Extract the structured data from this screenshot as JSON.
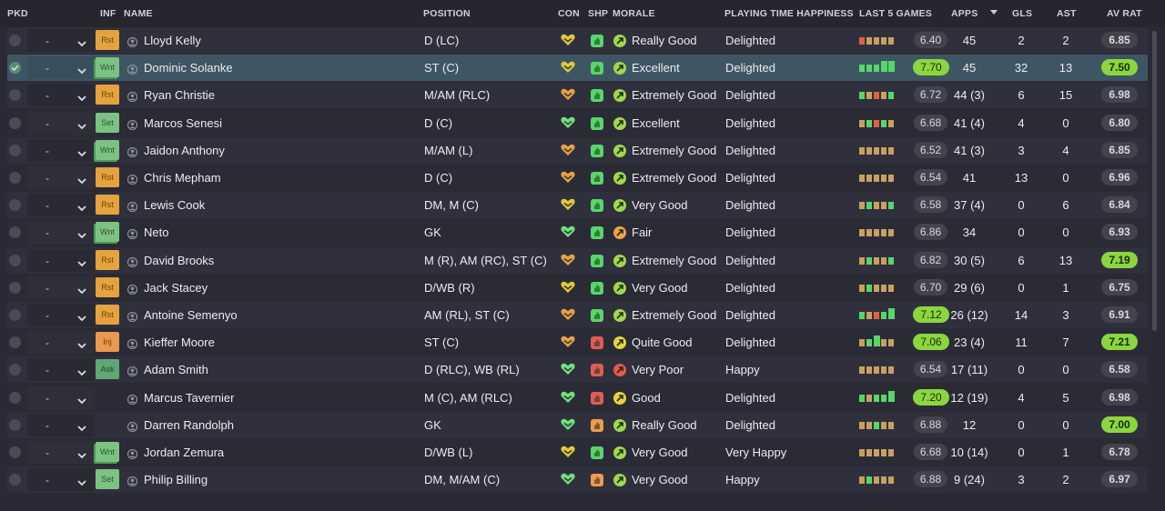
{
  "headers": {
    "pkd": "PKD",
    "inf": "INF",
    "name": "NAME",
    "position": "POSITION",
    "con": "CON",
    "shp": "SHP",
    "morale": "MORALE",
    "pth": "PLAYING TIME HAPPINESS",
    "last5": "LAST 5 GAMES",
    "apps": "APPS",
    "gls": "GLS",
    "ast": "AST",
    "avrat": "AV RAT"
  },
  "colors": {
    "good_rating": "#8bd63f",
    "form_green": "#57d66a",
    "form_tan": "#c8a060",
    "form_red": "#e0604a",
    "selected_row": "#3e5663"
  },
  "players": [
    {
      "picked": false,
      "selected": false,
      "sel": "-",
      "inf": "Rst",
      "name": "Lloyd Kelly",
      "pos": "D (LC)",
      "con": "yellow",
      "shp": "g",
      "mor_icon": "g",
      "morale": "Really Good",
      "pth": "Delighted",
      "form": [
        "r",
        "t",
        "t",
        "t",
        "t"
      ],
      "form_val": "6.40",
      "form_good": false,
      "apps": "45",
      "gls": "2",
      "ast": "2",
      "avr": "6.85",
      "avr_good": false
    },
    {
      "picked": true,
      "selected": true,
      "sel": "-",
      "inf": "Wnt",
      "name": "Dominic Solanke",
      "pos": "ST (C)",
      "con": "yellow",
      "shp": "g",
      "mor_icon": "g",
      "morale": "Excellent",
      "pth": "Delighted",
      "form": [
        "g",
        "g",
        "g",
        "G",
        "G"
      ],
      "form_val": "7.70",
      "form_good": true,
      "apps": "45",
      "gls": "32",
      "ast": "13",
      "avr": "7.50",
      "avr_good": true
    },
    {
      "picked": false,
      "selected": false,
      "sel": "-",
      "inf": "Rst",
      "name": "Ryan Christie",
      "pos": "M/AM (RLC)",
      "con": "orange",
      "shp": "g",
      "mor_icon": "g",
      "morale": "Extremely Good",
      "pth": "Delighted",
      "form": [
        "g",
        "t",
        "r",
        "t",
        "g"
      ],
      "form_val": "6.72",
      "form_good": false,
      "apps": "44 (3)",
      "gls": "6",
      "ast": "15",
      "avr": "6.98",
      "avr_good": false
    },
    {
      "picked": false,
      "selected": false,
      "sel": "-",
      "inf": "Set",
      "name": "Marcos Senesi",
      "pos": "D (C)",
      "con": "green",
      "shp": "g",
      "mor_icon": "g",
      "morale": "Excellent",
      "pth": "Delighted",
      "form": [
        "t",
        "g",
        "r",
        "g",
        "t"
      ],
      "form_val": "6.68",
      "form_good": false,
      "apps": "41 (4)",
      "gls": "4",
      "ast": "0",
      "avr": "6.80",
      "avr_good": false
    },
    {
      "picked": false,
      "selected": false,
      "sel": "-",
      "inf": "Wnt",
      "name": "Jaidon Anthony",
      "pos": "M/AM (L)",
      "con": "orange",
      "shp": "g",
      "mor_icon": "g",
      "morale": "Extremely Good",
      "pth": "Delighted",
      "form": [
        "t",
        "t",
        "t",
        "t",
        "t"
      ],
      "form_val": "6.52",
      "form_good": false,
      "apps": "41 (3)",
      "gls": "3",
      "ast": "4",
      "avr": "6.85",
      "avr_good": false
    },
    {
      "picked": false,
      "selected": false,
      "sel": "-",
      "inf": "Rst",
      "name": "Chris Mepham",
      "pos": "D (C)",
      "con": "orange",
      "shp": "g",
      "mor_icon": "g",
      "morale": "Extremely Good",
      "pth": "Delighted",
      "form": [
        "t",
        "t",
        "t",
        "t",
        "t"
      ],
      "form_val": "6.54",
      "form_good": false,
      "apps": "41",
      "gls": "13",
      "ast": "0",
      "avr": "6.96",
      "avr_good": false
    },
    {
      "picked": false,
      "selected": false,
      "sel": "-",
      "inf": "Rst",
      "name": "Lewis Cook",
      "pos": "DM, M (C)",
      "con": "yellow",
      "shp": "g",
      "mor_icon": "g",
      "morale": "Very Good",
      "pth": "Delighted",
      "form": [
        "t",
        "g",
        "t",
        "t",
        "g"
      ],
      "form_val": "6.58",
      "form_good": false,
      "apps": "37 (4)",
      "gls": "0",
      "ast": "6",
      "avr": "6.84",
      "avr_good": false
    },
    {
      "picked": false,
      "selected": false,
      "sel": "-",
      "inf": "Wnt",
      "name": "Neto",
      "pos": "GK",
      "con": "green",
      "shp": "g",
      "mor_icon": "o",
      "morale": "Fair",
      "pth": "Delighted",
      "form": [
        "t",
        "t",
        "t",
        "t",
        "t"
      ],
      "form_val": "6.86",
      "form_good": false,
      "apps": "34",
      "gls": "0",
      "ast": "0",
      "avr": "6.93",
      "avr_good": false
    },
    {
      "picked": false,
      "selected": false,
      "sel": "-",
      "inf": "Rst",
      "name": "David Brooks",
      "pos": "M (R), AM (RC), ST (C)",
      "con": "orange",
      "shp": "g",
      "mor_icon": "g",
      "morale": "Extremely Good",
      "pth": "Delighted",
      "form": [
        "t",
        "g",
        "t",
        "t",
        "g"
      ],
      "form_val": "6.82",
      "form_good": false,
      "apps": "30 (5)",
      "gls": "6",
      "ast": "13",
      "avr": "7.19",
      "avr_good": true
    },
    {
      "picked": false,
      "selected": false,
      "sel": "-",
      "inf": "Rst",
      "name": "Jack Stacey",
      "pos": "D/WB (R)",
      "con": "yellow",
      "shp": "g",
      "mor_icon": "g",
      "morale": "Very Good",
      "pth": "Delighted",
      "form": [
        "t",
        "g",
        "t",
        "t",
        "t"
      ],
      "form_val": "6.70",
      "form_good": false,
      "apps": "29 (6)",
      "gls": "0",
      "ast": "1",
      "avr": "6.75",
      "avr_good": false
    },
    {
      "picked": false,
      "selected": false,
      "sel": "-",
      "inf": "Rst",
      "name": "Antoine Semenyo",
      "pos": "AM (RL), ST (C)",
      "con": "orange",
      "shp": "g",
      "mor_icon": "g",
      "morale": "Extremely Good",
      "pth": "Delighted",
      "form": [
        "g",
        "t",
        "r",
        "g",
        "G"
      ],
      "form_val": "7.12",
      "form_good": true,
      "apps": "26 (12)",
      "gls": "14",
      "ast": "3",
      "avr": "6.91",
      "avr_good": false
    },
    {
      "picked": false,
      "selected": false,
      "sel": "-",
      "inf": "Inj",
      "name": "Kieffer Moore",
      "pos": "ST (C)",
      "con": "orange",
      "shp": "r",
      "mor_icon": "y",
      "morale": "Quite Good",
      "pth": "Delighted",
      "form": [
        "t",
        "g",
        "G",
        "t",
        "t"
      ],
      "form_val": "7.06",
      "form_good": true,
      "apps": "23 (4)",
      "gls": "11",
      "ast": "7",
      "avr": "7.21",
      "avr_good": true
    },
    {
      "picked": false,
      "selected": false,
      "sel": "-",
      "inf": "Ask",
      "name": "Adam Smith",
      "pos": "D (RLC), WB (RL)",
      "con": "green",
      "shp": "r",
      "mor_icon": "r",
      "morale": "Very Poor",
      "pth": "Happy",
      "form": [
        "t",
        "t",
        "t",
        "t",
        "t"
      ],
      "form_val": "6.54",
      "form_good": false,
      "apps": "17 (11)",
      "gls": "0",
      "ast": "0",
      "avr": "6.58",
      "avr_good": false
    },
    {
      "picked": false,
      "selected": false,
      "sel": "-",
      "inf": "",
      "name": "Marcus Tavernier",
      "pos": "M (C), AM (RLC)",
      "con": "green",
      "shp": "r",
      "mor_icon": "y",
      "morale": "Good",
      "pth": "Delighted",
      "form": [
        "g",
        "t",
        "g",
        "g",
        "G"
      ],
      "form_val": "7.20",
      "form_good": true,
      "apps": "12 (19)",
      "gls": "4",
      "ast": "5",
      "avr": "6.98",
      "avr_good": false
    },
    {
      "picked": false,
      "selected": false,
      "sel": "-",
      "inf": "",
      "name": "Darren Randolph",
      "pos": "GK",
      "con": "green",
      "shp": "o",
      "mor_icon": "g",
      "morale": "Really Good",
      "pth": "Delighted",
      "form": [
        "t",
        "t",
        "g",
        "t",
        "t"
      ],
      "form_val": "6.88",
      "form_good": false,
      "apps": "12",
      "gls": "0",
      "ast": "0",
      "avr": "7.00",
      "avr_good": true
    },
    {
      "picked": false,
      "selected": false,
      "sel": "-",
      "inf": "Wnt",
      "name": "Jordan Zemura",
      "pos": "D/WB (L)",
      "con": "yellow",
      "shp": "g",
      "mor_icon": "g",
      "morale": "Very Good",
      "pth": "Very Happy",
      "form": [
        "t",
        "t",
        "t",
        "t",
        "t"
      ],
      "form_val": "6.68",
      "form_good": false,
      "apps": "10 (14)",
      "gls": "0",
      "ast": "1",
      "avr": "6.78",
      "avr_good": false
    },
    {
      "picked": false,
      "selected": false,
      "sel": "-",
      "inf": "Set",
      "name": "Philip Billing",
      "pos": "DM, M/AM (C)",
      "con": "green",
      "shp": "o",
      "mor_icon": "g",
      "morale": "Very Good",
      "pth": "Happy",
      "form": [
        "t",
        "g",
        "t",
        "t",
        "t"
      ],
      "form_val": "6.88",
      "form_good": false,
      "apps": "9 (24)",
      "gls": "3",
      "ast": "2",
      "avr": "6.97",
      "avr_good": false
    }
  ]
}
